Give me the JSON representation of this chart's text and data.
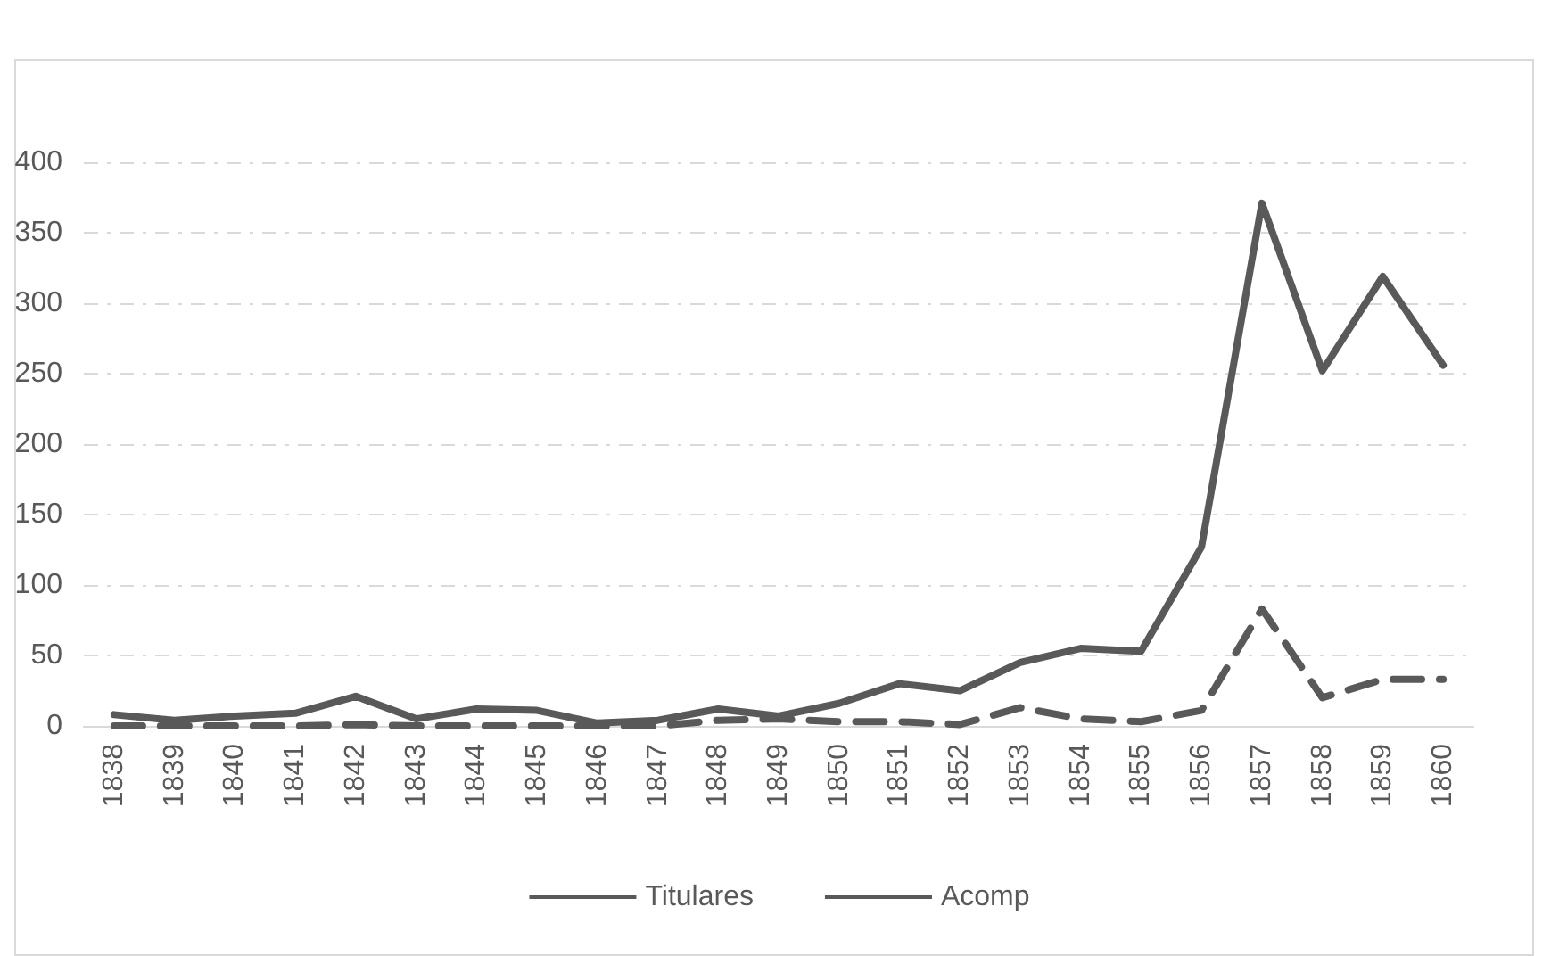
{
  "chart_data": {
    "type": "line",
    "categories": [
      "1838",
      "1839",
      "1840",
      "1841",
      "1842",
      "1843",
      "1844",
      "1845",
      "1846",
      "1847",
      "1848",
      "1849",
      "1850",
      "1851",
      "1852",
      "1853",
      "1854",
      "1855",
      "1856",
      "1857",
      "1858",
      "1859",
      "1860"
    ],
    "series": [
      {
        "name": "Titulares",
        "color": "#595959",
        "line_style": "solid",
        "values": [
          8,
          4,
          7,
          9,
          21,
          5,
          12,
          11,
          2,
          4,
          12,
          7,
          16,
          30,
          25,
          45,
          55,
          53,
          127,
          371,
          252,
          319,
          256
        ]
      },
      {
        "name": "Acomp",
        "color": "#595959",
        "line_style": "dashed",
        "values": [
          0,
          0,
          0,
          0,
          1,
          0,
          0,
          0,
          0,
          0,
          4,
          5,
          3,
          3,
          1,
          13,
          5,
          3,
          11,
          83,
          20,
          33,
          33
        ]
      }
    ],
    "ylim": [
      0,
      400
    ],
    "yticks": [
      0,
      50,
      100,
      150,
      200,
      250,
      300,
      350,
      400
    ],
    "grid": "y",
    "legend": "bottom",
    "marker": "none"
  }
}
